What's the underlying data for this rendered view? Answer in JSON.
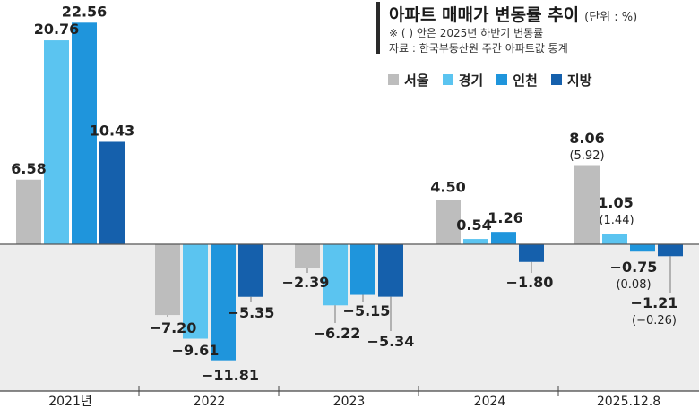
{
  "title": {
    "main": "아파트 매매가 변동률 추이",
    "unit": "(단위 : %)",
    "note": "※ ( ) 안은 2025년 하반기 변동률",
    "source": "자료 : 한국부동산원 주간 아파트값 통계"
  },
  "chart_data": {
    "type": "bar",
    "categories": [
      "2021년",
      "2022",
      "2023",
      "2024",
      "2025.12.8"
    ],
    "series": [
      {
        "name": "서울",
        "color": "#bdbdbd",
        "values": [
          6.58,
          -7.2,
          -2.39,
          4.5,
          8.06
        ],
        "labels": [
          "6.58",
          "−7.20",
          "−2.39",
          "4.50",
          "8.06"
        ],
        "secondary": [
          null,
          null,
          null,
          null,
          "(5.92)"
        ]
      },
      {
        "name": "경기",
        "color": "#5bc4f0",
        "values": [
          20.76,
          -9.61,
          -6.22,
          0.54,
          1.05
        ],
        "labels": [
          "20.76",
          "−9.61",
          "−6.22",
          "0.54",
          "1.05"
        ],
        "secondary": [
          null,
          null,
          null,
          null,
          "(1.44)"
        ]
      },
      {
        "name": "인천",
        "color": "#1f95dc",
        "values": [
          22.56,
          -11.81,
          -5.15,
          1.26,
          -0.75
        ],
        "labels": [
          "22.56",
          "−11.81",
          "−5.15",
          "1.26",
          "−0.75"
        ],
        "secondary": [
          null,
          null,
          null,
          null,
          "(0.08)"
        ]
      },
      {
        "name": "지방",
        "color": "#1560ac",
        "values": [
          10.43,
          -5.35,
          -5.34,
          -1.8,
          -1.21
        ],
        "labels": [
          "10.43",
          "−5.35",
          "−5.34",
          "−1.80",
          "−1.21"
        ],
        "secondary": [
          null,
          null,
          null,
          null,
          "(−0.26)"
        ]
      }
    ],
    "ylim": [
      -13,
      24
    ],
    "grid": false,
    "legend": "top-right",
    "negative_region_color": "#ededed"
  }
}
